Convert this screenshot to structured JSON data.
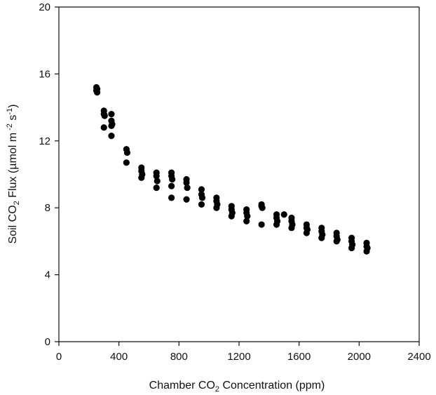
{
  "chart_data": {
    "type": "scatter",
    "title": "",
    "xlabel": {
      "prefix": "Chamber CO",
      "sub": "2",
      "suffix": " Concentration (ppm)"
    },
    "ylabel": {
      "prefix": "Soil CO",
      "sub": "2",
      "mid": " Flux (µmol m",
      "sup1": " -2",
      "mid2": " s",
      "sup2": "-1",
      "suffix": ")"
    },
    "xlim": [
      0,
      2400
    ],
    "ylim": [
      0,
      20
    ],
    "xticks": [
      "0",
      "400",
      "800",
      "1200",
      "1600",
      "2000",
      "2400"
    ],
    "yticks": [
      "0",
      "4",
      "8",
      "12",
      "16",
      "20"
    ],
    "marker_color": "#000000",
    "grid": false,
    "points": [
      [
        250,
        15.2
      ],
      [
        250,
        15.0
      ],
      [
        255,
        14.9
      ],
      [
        255,
        15.1
      ],
      [
        300,
        13.8
      ],
      [
        300,
        13.6
      ],
      [
        305,
        13.5
      ],
      [
        300,
        12.8
      ],
      [
        350,
        13.6
      ],
      [
        350,
        13.2
      ],
      [
        355,
        13.0
      ],
      [
        350,
        12.9
      ],
      [
        350,
        12.3
      ],
      [
        450,
        11.5
      ],
      [
        455,
        11.3
      ],
      [
        450,
        10.7
      ],
      [
        550,
        10.4
      ],
      [
        550,
        10.2
      ],
      [
        555,
        10.0
      ],
      [
        550,
        9.8
      ],
      [
        650,
        10.1
      ],
      [
        650,
        9.9
      ],
      [
        655,
        9.6
      ],
      [
        650,
        9.2
      ],
      [
        750,
        10.1
      ],
      [
        750,
        9.9
      ],
      [
        755,
        9.7
      ],
      [
        750,
        9.3
      ],
      [
        750,
        8.6
      ],
      [
        850,
        9.7
      ],
      [
        850,
        9.5
      ],
      [
        855,
        9.2
      ],
      [
        850,
        8.5
      ],
      [
        950,
        9.1
      ],
      [
        950,
        8.8
      ],
      [
        955,
        8.6
      ],
      [
        950,
        8.2
      ],
      [
        1050,
        8.6
      ],
      [
        1050,
        8.4
      ],
      [
        1055,
        8.2
      ],
      [
        1050,
        8.0
      ],
      [
        1150,
        8.1
      ],
      [
        1150,
        7.9
      ],
      [
        1155,
        7.7
      ],
      [
        1150,
        7.5
      ],
      [
        1250,
        7.9
      ],
      [
        1250,
        7.7
      ],
      [
        1255,
        7.5
      ],
      [
        1250,
        7.2
      ],
      [
        1350,
        8.2
      ],
      [
        1350,
        8.1
      ],
      [
        1355,
        8.0
      ],
      [
        1350,
        7.0
      ],
      [
        1450,
        7.6
      ],
      [
        1450,
        7.4
      ],
      [
        1455,
        7.2
      ],
      [
        1450,
        7.0
      ],
      [
        1500,
        7.6
      ],
      [
        1550,
        7.4
      ],
      [
        1550,
        7.2
      ],
      [
        1555,
        7.0
      ],
      [
        1550,
        6.8
      ],
      [
        1650,
        7.0
      ],
      [
        1650,
        6.8
      ],
      [
        1655,
        6.7
      ],
      [
        1650,
        6.5
      ],
      [
        1750,
        6.8
      ],
      [
        1750,
        6.6
      ],
      [
        1755,
        6.4
      ],
      [
        1750,
        6.2
      ],
      [
        1850,
        6.5
      ],
      [
        1850,
        6.3
      ],
      [
        1855,
        6.1
      ],
      [
        1850,
        6.0
      ],
      [
        1950,
        6.2
      ],
      [
        1950,
        6.0
      ],
      [
        1955,
        5.8
      ],
      [
        1950,
        5.6
      ],
      [
        2050,
        5.9
      ],
      [
        2050,
        5.7
      ],
      [
        2055,
        5.6
      ],
      [
        2050,
        5.4
      ]
    ]
  }
}
